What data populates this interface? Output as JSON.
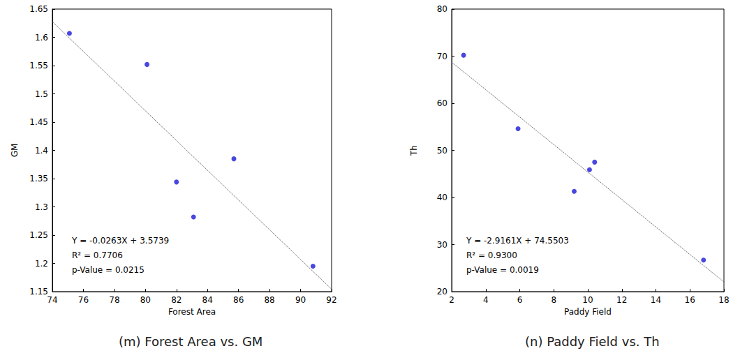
{
  "chart_data": [
    {
      "type": "scatter",
      "title": "(m) Forest Area vs. GM",
      "x_label": "Forest Area",
      "y_label": "GM",
      "xlim": [
        74,
        92
      ],
      "xticks": [
        74,
        76,
        78,
        80,
        82,
        84,
        86,
        88,
        90,
        92
      ],
      "ylim": [
        1.15,
        1.65
      ],
      "yticks": [
        1.15,
        1.2,
        1.25,
        1.3,
        1.35,
        1.4,
        1.45,
        1.5,
        1.55,
        1.6,
        1.65
      ],
      "annotations": [
        "Y = -0.0263X + 3.5739",
        "R² = 0.7706",
        "p-Value = 0.0215"
      ],
      "series": [
        {
          "type": "scatter",
          "marker": "circle",
          "color": "#1a1ad6",
          "x": [
            75.1,
            80.1,
            82.0,
            83.1,
            85.7,
            90.8
          ],
          "values": [
            1.607,
            1.552,
            1.344,
            1.282,
            1.385,
            1.195
          ]
        },
        {
          "type": "line",
          "line_style": "dotted",
          "color": "#444444",
          "x": [
            74,
            92
          ],
          "values": [
            1.6277,
            1.1543
          ]
        }
      ]
    },
    {
      "type": "scatter",
      "title": "(n) Paddy Field vs. Th",
      "x_label": "Paddy Field",
      "y_label": "Th",
      "xlim": [
        2,
        18
      ],
      "xticks": [
        2,
        4,
        6,
        8,
        10,
        12,
        14,
        16,
        18
      ],
      "ylim": [
        20,
        80
      ],
      "yticks": [
        20,
        30,
        40,
        50,
        60,
        70,
        80
      ],
      "annotations": [
        "Y = -2.9161X + 74.5503",
        "R² = 0.9300",
        "p-Value = 0.0019"
      ],
      "series": [
        {
          "type": "scatter",
          "marker": "circle",
          "color": "#1a1ad6",
          "x": [
            2.7,
            5.9,
            9.2,
            10.1,
            10.4,
            16.8
          ],
          "values": [
            70.2,
            54.6,
            41.3,
            45.9,
            47.5,
            26.7
          ]
        },
        {
          "type": "line",
          "line_style": "dotted",
          "color": "#444444",
          "x": [
            2,
            18
          ],
          "values": [
            68.72,
            22.06
          ]
        }
      ]
    }
  ]
}
